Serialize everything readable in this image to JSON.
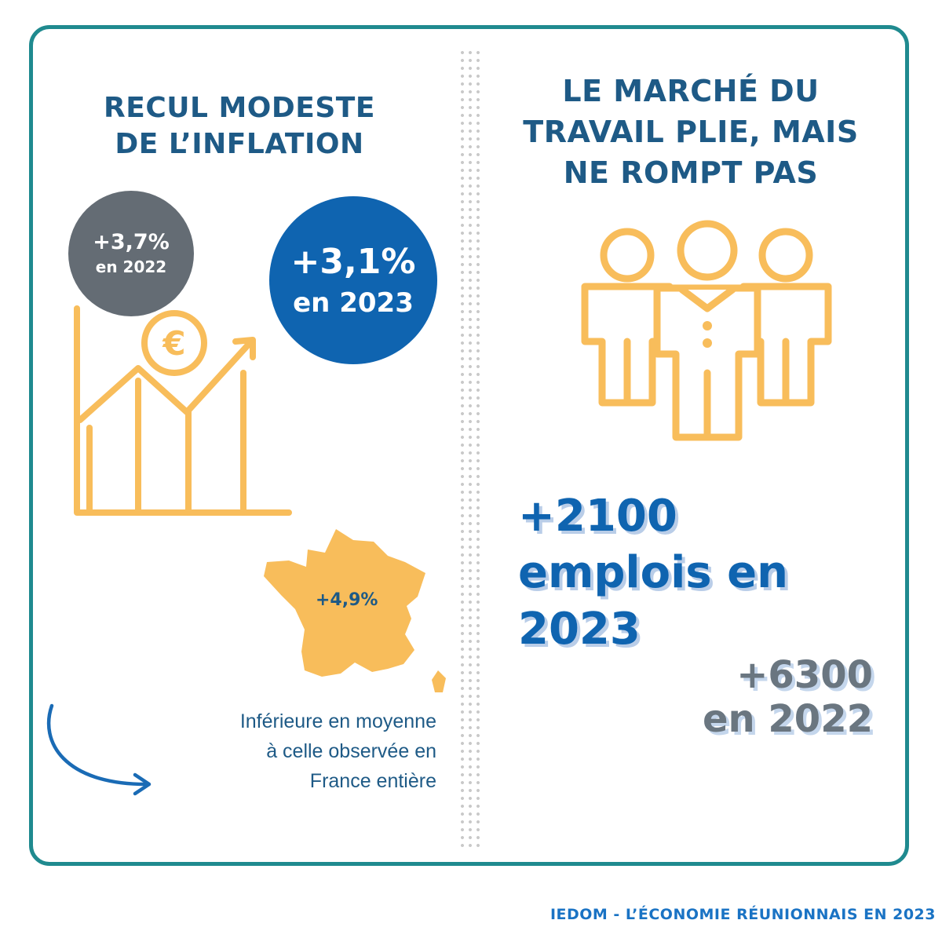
{
  "inflation": {
    "title": "RECUL MODESTE DE L’INFLATION",
    "title_lines": [
      "RECUL MODESTE",
      "DE L’INFLATION"
    ],
    "rate_2022": {
      "value": "+3,7%",
      "label": "en 2022",
      "color": "#646c74"
    },
    "rate_2023": {
      "value": "+3,1%",
      "label": "en 2023",
      "color": "#0f64b0"
    },
    "france_rate": "+4,9%",
    "note_lines": [
      "Inférieure en moyenne",
      "à celle observée en",
      "France entière"
    ],
    "icons": [
      "euro-coin-icon",
      "growth-chart-icon",
      "france-map-icon",
      "curved-arrow-icon"
    ]
  },
  "labour": {
    "title_lines": [
      "LE MARCHÉ DU",
      "TRAVAIL PLIE, MAIS",
      "NE ROMPT PAS"
    ],
    "jobs_2023_lines": [
      "+2100",
      "emplois en",
      "2023"
    ],
    "jobs_2022_lines": [
      "+6300",
      "en 2022"
    ],
    "icons": [
      "people-group-icon"
    ]
  },
  "footer": "IEDOM - L’ÉCONOMIE RÉUNIONNAIS EN 2023",
  "colors": {
    "frame": "#1f8a8f",
    "heading": "#1e5a86",
    "accent_blue": "#0f64b0",
    "icon_yellow": "#f8bd5b",
    "grey": "#646c74"
  }
}
